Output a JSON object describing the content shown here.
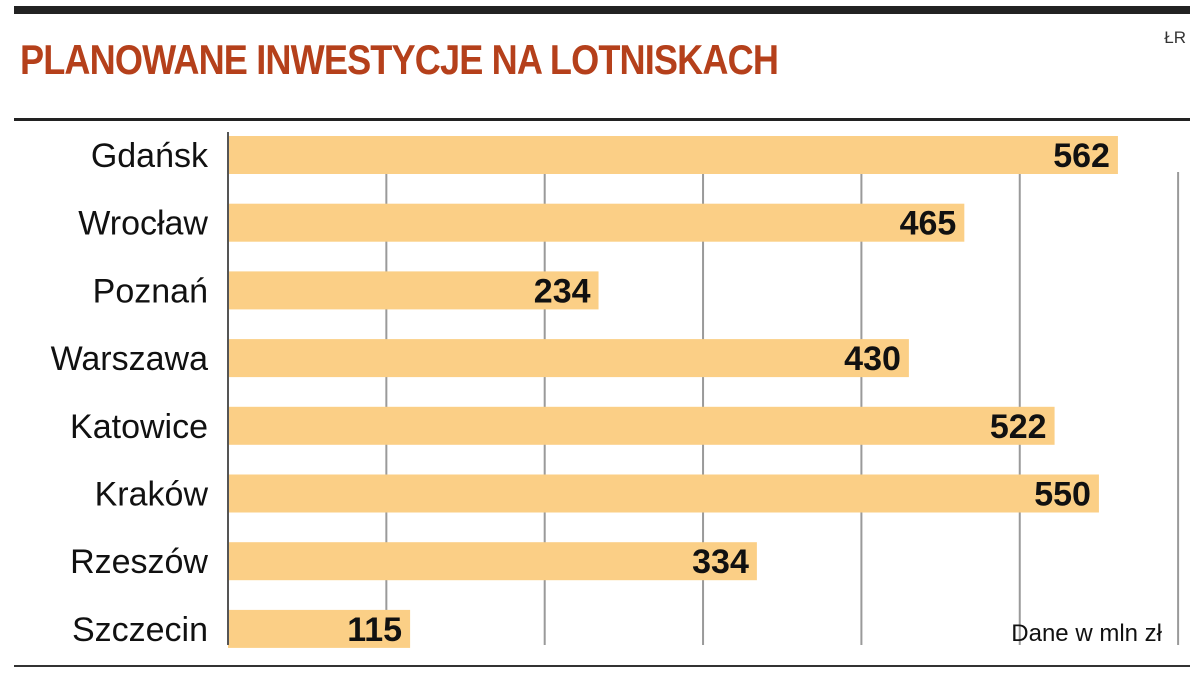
{
  "header": {
    "title": "PLANOWANE INWESTYCJE NA LOTNISKACH",
    "credit": "ŁR"
  },
  "colors": {
    "title": "#b5401b",
    "bar": "#fbcf86",
    "grid": "#9a9a9a",
    "axis": "#555555",
    "rule": "#222222"
  },
  "note": "Dane w mln zł",
  "chart_data": {
    "type": "bar",
    "orientation": "horizontal",
    "title": "PLANOWANE INWESTYCJE NA LOTNISKACH",
    "unit_note": "Dane w mln zł",
    "categories": [
      "Gdańsk",
      "Wrocław",
      "Poznań",
      "Warszawa",
      "Katowice",
      "Kraków",
      "Rzeszów",
      "Szczecin"
    ],
    "values": [
      562,
      465,
      234,
      430,
      522,
      550,
      334,
      115
    ],
    "data_labels": [
      "562",
      "465",
      "234",
      "430",
      "522",
      "550",
      "334",
      "115"
    ],
    "xlim": [
      0,
      600
    ],
    "grid": true,
    "gridlines_at": [
      100,
      200,
      300,
      400,
      500,
      600
    ],
    "legend": "none"
  }
}
